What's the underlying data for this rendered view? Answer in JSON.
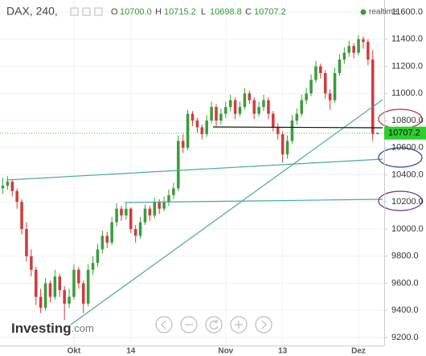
{
  "chart_data": {
    "type": "candlestick",
    "symbol": "DAX, 240,",
    "ohlc_header": [
      {
        "key": "O",
        "value": "10700.0"
      },
      {
        "key": "H",
        "value": "10715.2"
      },
      {
        "key": "L",
        "value": "10698.8"
      },
      {
        "key": "C",
        "value": "10707.2"
      }
    ],
    "realtime": "realtime",
    "brand": "Investing",
    "brand_suffix": ".com",
    "categories": [
      null,
      null,
      null,
      null,
      null,
      null,
      null,
      null,
      null,
      null,
      null,
      null,
      null,
      null,
      null,
      "Okt",
      null,
      null,
      null,
      null,
      null,
      null,
      null,
      null,
      null,
      null,
      null,
      "14",
      null,
      null,
      null,
      null,
      null,
      null,
      null,
      null,
      null,
      null,
      null,
      null,
      null,
      null,
      null,
      null,
      null,
      null,
      null,
      "Nov",
      null,
      null,
      null,
      null,
      null,
      null,
      null,
      null,
      null,
      null,
      null,
      "13",
      null,
      null,
      null,
      null,
      null,
      null,
      null,
      null,
      null,
      null,
      null,
      null,
      null,
      null,
      null,
      "Dez",
      null,
      null,
      null,
      null
    ],
    "open": [
      10300,
      10320,
      10350,
      10280,
      10200,
      10000,
      9800,
      9700,
      9500,
      9420,
      9600,
      9500,
      9650,
      9550,
      9450,
      9500,
      9700,
      9600,
      9450,
      9700,
      9750,
      9850,
      9950,
      9900,
      10050,
      10150,
      10100,
      10150,
      10000,
      9950,
      10050,
      10150,
      10100,
      10200,
      10150,
      10200,
      10250,
      10300,
      10650,
      10600,
      10850,
      10800,
      10750,
      10700,
      10800,
      10900,
      10800,
      10850,
      10900,
      10950,
      10850,
      10900,
      11000,
      10950,
      10850,
      10900,
      10950,
      10850,
      10750,
      10700,
      10550,
      10650,
      10800,
      10850,
      10950,
      11000,
      11100,
      11200,
      11150,
      11000,
      10950,
      11150,
      11250,
      11300,
      11350,
      11300,
      11400,
      11380,
      11250,
      10700
    ],
    "high": [
      10380,
      10390,
      10360,
      10300,
      10220,
      10050,
      9850,
      9720,
      9560,
      9640,
      9620,
      9700,
      9670,
      9580,
      9560,
      9740,
      9720,
      9620,
      9740,
      9800,
      9890,
      9990,
      9980,
      10090,
      10190,
      10170,
      10190,
      10160,
      10030,
      10090,
      10180,
      10170,
      10230,
      10220,
      10240,
      10290,
      10340,
      10690,
      10700,
      10880,
      10870,
      10820,
      10770,
      10840,
      10940,
      10920,
      10890,
      10940,
      10990,
      10970,
      10940,
      11040,
      11020,
      10970,
      10940,
      10990,
      10970,
      10870,
      10780,
      10720,
      10690,
      10840,
      10890,
      10990,
      11040,
      11140,
      11240,
      11220,
      11170,
      11030,
      11190,
      11290,
      11340,
      11390,
      11370,
      11430,
      11420,
      11400,
      11320,
      10715.2
    ],
    "low": [
      10260,
      10290,
      10240,
      10150,
      9960,
      9760,
      9650,
      9440,
      9380,
      9400,
      9460,
      9480,
      9500,
      9330,
      9420,
      9480,
      9560,
      9380,
      9430,
      9660,
      9720,
      9820,
      9860,
      9880,
      10020,
      10060,
      10070,
      9970,
      9900,
      9930,
      10030,
      10060,
      10080,
      10110,
      10130,
      10170,
      10220,
      10280,
      10560,
      10580,
      10760,
      10710,
      10660,
      10680,
      10780,
      10760,
      10770,
      10820,
      10870,
      10810,
      10830,
      10880,
      10920,
      10810,
      10830,
      10870,
      10810,
      10720,
      10660,
      10490,
      10520,
      10630,
      10770,
      10830,
      10920,
      10980,
      11080,
      11110,
      10960,
      10880,
      10930,
      11130,
      11220,
      11270,
      11260,
      11280,
      11330,
      11210,
      10650,
      10698.8
    ],
    "close": [
      10320,
      10350,
      10280,
      10200,
      10000,
      9800,
      9700,
      9500,
      9420,
      9600,
      9500,
      9650,
      9550,
      9450,
      9500,
      9700,
      9600,
      9450,
      9700,
      9750,
      9850,
      9950,
      9900,
      10050,
      10150,
      10100,
      10150,
      10000,
      9950,
      10050,
      10150,
      10100,
      10200,
      10150,
      10200,
      10250,
      10300,
      10650,
      10600,
      10850,
      10800,
      10750,
      10700,
      10800,
      10900,
      10800,
      10850,
      10900,
      10950,
      10850,
      10900,
      11000,
      10950,
      10850,
      10900,
      10950,
      10850,
      10750,
      10700,
      10550,
      10650,
      10800,
      10850,
      10950,
      11000,
      11100,
      11200,
      11150,
      11000,
      10950,
      11150,
      11250,
      11300,
      11350,
      11300,
      11400,
      11380,
      11250,
      10700,
      10707.2
    ],
    "up_color": "#3a9d3a",
    "down_color": "#d23b3b",
    "ylim": [
      9141,
      11689
    ],
    "yticks": [
      {
        "value": 9200,
        "label": "9200.0"
      },
      {
        "value": 9400,
        "label": "9400.0"
      },
      {
        "value": 9600,
        "label": "9600.0"
      },
      {
        "value": 9800,
        "label": "9800.0"
      },
      {
        "value": 10000,
        "label": "10000.0"
      },
      {
        "value": 10200,
        "label": "10200.0"
      },
      {
        "value": 10400,
        "label": "10400.0"
      },
      {
        "value": 10600,
        "label": "10600.0"
      },
      {
        "value": 10800,
        "label": "10800.0"
      },
      {
        "value": 11000,
        "label": "11000.0"
      },
      {
        "value": 11200,
        "label": "11200.0"
      },
      {
        "value": 11400,
        "label": "11400.0"
      },
      {
        "value": 11600,
        "label": "11600.0"
      }
    ],
    "grid": true,
    "last_price_label": "10707.2"
  }
}
